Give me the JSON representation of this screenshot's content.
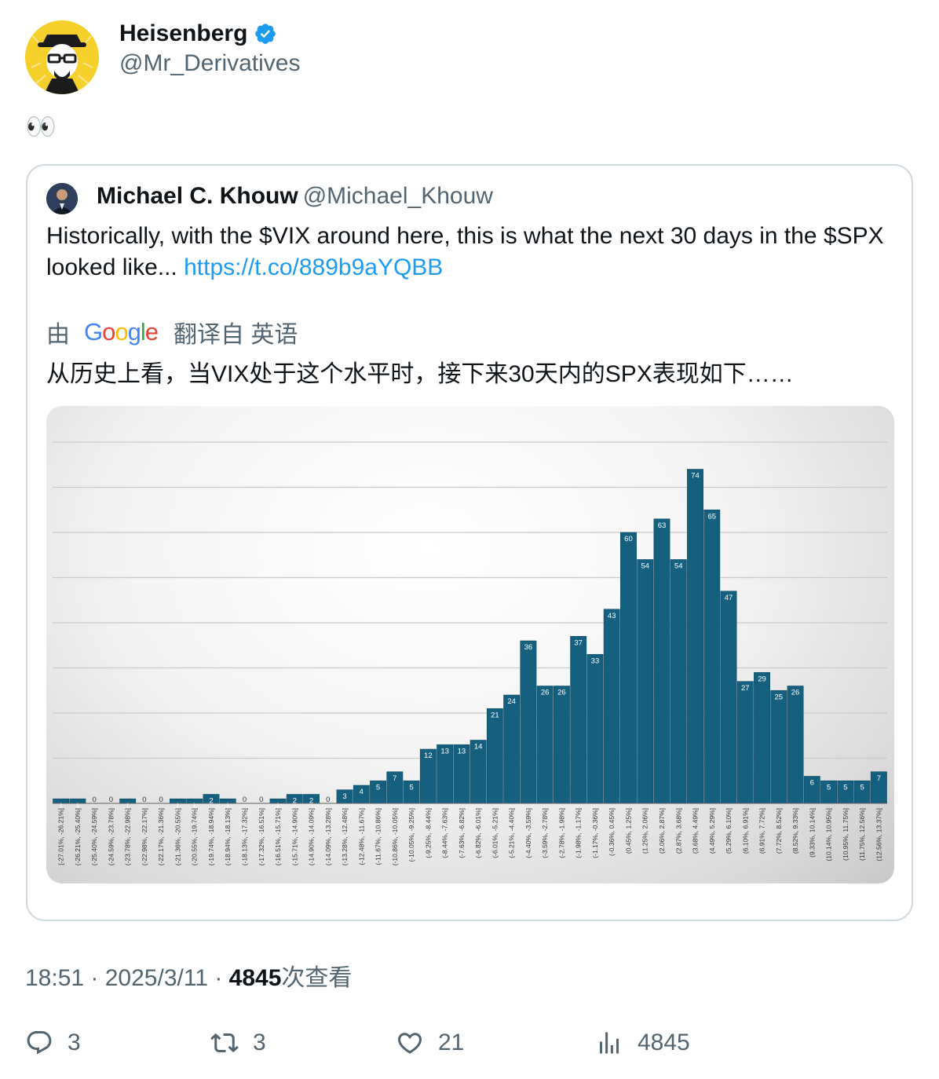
{
  "author": {
    "display_name": "Heisenberg",
    "handle": "@Mr_Derivatives",
    "verified": true,
    "avatar_icon": "heisenberg-avatar-icon"
  },
  "tweet": {
    "text": "👀"
  },
  "quoted": {
    "display_name": "Michael C. Khouw",
    "handle": "@Michael_Khouw",
    "text": "Historically, with the $VIX around here, this is what the next 30 days in the $SPX looked like...",
    "link": "https://t.co/889b9aYQBB",
    "translate": {
      "prefix": "由",
      "provider": "Google",
      "suffix": "翻译自 英语"
    },
    "translated_text": "从历史上看，当VIX处于这个水平时，接下来30天内的SPX表现如下……"
  },
  "chart_data": {
    "type": "bar",
    "title": "",
    "xlabel": "",
    "ylabel": "",
    "ylim": [
      0,
      80
    ],
    "grid": true,
    "bar_color": "#16607f",
    "categories": [
      "[-27.01%, -26.21%]",
      "(-26.21%, -25.40%]",
      "(-25.40%, -24.59%]",
      "(-24.59%, -23.78%]",
      "(-23.78%, -22.98%]",
      "(-22.98%, -22.17%]",
      "(-22.17%, -21.36%]",
      "(-21.36%, -20.55%]",
      "(-20.55%, -19.74%]",
      "(-19.74%, -18.94%]",
      "(-18.94%, -18.13%]",
      "(-18.13%, -17.32%]",
      "(-17.32%, -16.51%]",
      "(-16.51%, -15.71%]",
      "(-15.71%, -14.90%]",
      "(-14.90%, -14.09%]",
      "(-14.09%, -13.28%]",
      "(-13.28%, -12.48%]",
      "(-12.48%, -11.67%]",
      "(-11.67%, -10.86%]",
      "(-10.86%, -10.05%]",
      "(-10.05%, -9.25%]",
      "(-9.25%, -8.44%]",
      "(-8.44%, -7.63%]",
      "(-7.63%, -6.82%]",
      "(-6.82%, -6.01%]",
      "(-6.01%, -5.21%]",
      "(-5.21%, -4.40%]",
      "(-4.40%, -3.59%]",
      "(-3.59%, -2.78%]",
      "(-2.78%, -1.98%]",
      "(-1.98%, -1.17%]",
      "(-1.17%, -0.36%]",
      "(-0.36%, 0.45%]",
      "(0.45%, 1.25%]",
      "(1.25%, 2.06%]",
      "(2.06%, 2.87%]",
      "(2.87%, 3.68%]",
      "(3.68%, 4.49%]",
      "(4.49%, 5.29%]",
      "(5.29%, 6.10%]",
      "(6.10%, 6.91%]",
      "(6.91%, 7.72%]",
      "(7.72%, 8.52%]",
      "(8.52%, 9.33%]",
      "(9.33%, 10.14%]",
      "(10.14%, 10.95%]",
      "(10.95%, 11.75%]",
      "(11.75%, 12.56%]",
      "(12.56%, 13.37%]"
    ],
    "values": [
      1,
      1,
      0,
      0,
      1,
      0,
      0,
      1,
      1,
      2,
      1,
      0,
      0,
      1,
      2,
      2,
      0,
      3,
      4,
      5,
      7,
      5,
      12,
      13,
      13,
      14,
      21,
      24,
      36,
      26,
      26,
      37,
      33,
      43,
      60,
      54,
      63,
      54,
      74,
      65,
      47,
      27,
      29,
      25,
      26,
      6,
      5,
      5,
      5,
      7
    ]
  },
  "footer": {
    "time": "18:51",
    "date": "2025/3/11",
    "views_count": "4845",
    "views_label": "次查看"
  },
  "actions": {
    "replies": "3",
    "reposts": "3",
    "likes": "21",
    "views": "4845"
  }
}
